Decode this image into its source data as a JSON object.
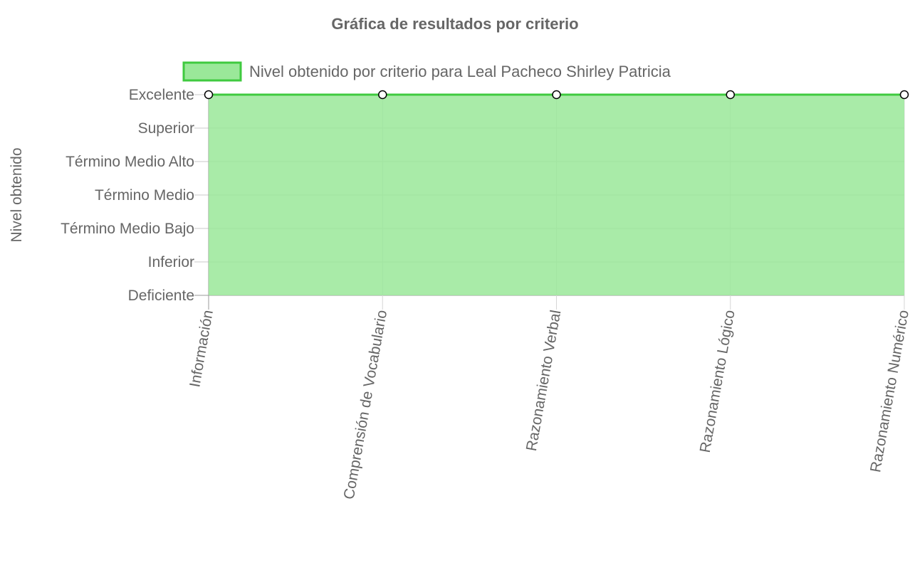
{
  "chart_data": {
    "type": "area",
    "title": "Gráfica de resultados por criterio",
    "ylabel": "Nivel obtenido",
    "xlabel": "",
    "y_levels": [
      "Deficiente",
      "Inferior",
      "Término Medio Bajo",
      "Término Medio",
      "Término Medio Alto",
      "Superior",
      "Excelente"
    ],
    "categories": [
      "Información",
      "Comprensión de Vocabulario",
      "Razonamiento Verbal",
      "Razonamiento Lógico",
      "Razonamiento Numérico"
    ],
    "series": [
      {
        "name": "Nivel obtenido por criterio para Leal Pacheco Shirley Patricia",
        "values": [
          "Excelente",
          "Excelente",
          "Excelente",
          "Excelente",
          "Excelente"
        ],
        "fill_color": "#9ae899",
        "line_color": "#3fca3f"
      }
    ],
    "legend": "top",
    "grid": true
  }
}
